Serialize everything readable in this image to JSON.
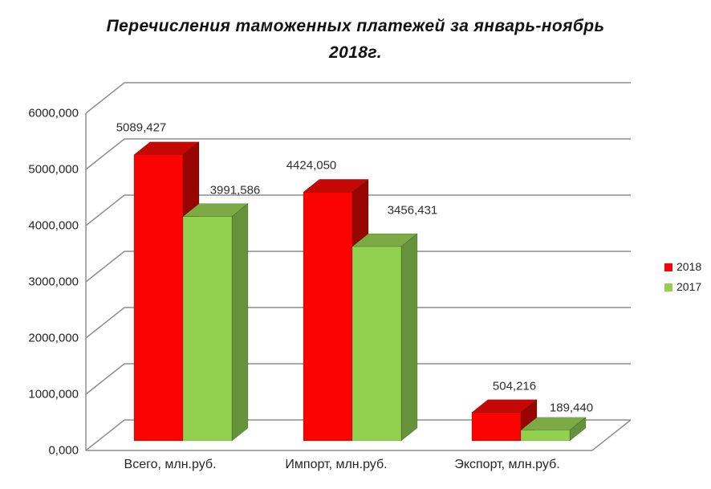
{
  "title": {
    "line1": "Перечисления таможенных платежей за январь-ноябрь",
    "line2": "2018г."
  },
  "legend": {
    "position": "right",
    "entries": [
      {
        "label": "2018",
        "color": "#fb0300"
      },
      {
        "label": "2017",
        "color": "#92d050"
      }
    ]
  },
  "chart_data": {
    "type": "bar",
    "projection": "3d",
    "title": "Перечисления таможенных платежей за январь-ноябрь 2018г.",
    "categories": [
      "Всего, млн.руб.",
      "Импорт, млн.руб.",
      "Экспорт, млн.руб."
    ],
    "series": [
      {
        "name": "2018",
        "color": "#fb0300",
        "color_top": "#c50803",
        "color_side": "#960500",
        "values": [
          5089.427,
          4424.05,
          504.216
        ],
        "labels": [
          "5089,427",
          "4424,050",
          "504,216"
        ]
      },
      {
        "name": "2017",
        "color": "#92d050",
        "color_top": "#7cab45",
        "color_side": "#66923c",
        "values": [
          3991.586,
          3456.431,
          189.44
        ],
        "labels": [
          "3991,586",
          "3456,431",
          "189,440"
        ]
      }
    ],
    "y_axis": {
      "min": 0,
      "max": 6000,
      "step": 1000,
      "ticks": [
        "0,000",
        "1000,000",
        "2000,000",
        "3000,000",
        "4000,000",
        "5000,000",
        "6000,000"
      ]
    },
    "grid": true,
    "grid_color": "#8e8e8e",
    "legend_position": "right"
  }
}
